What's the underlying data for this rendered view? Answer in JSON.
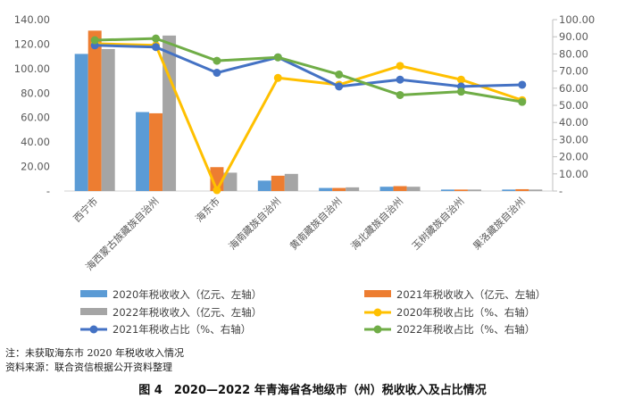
{
  "chart_data": {
    "type": "bar",
    "categories": [
      "西宁市",
      "海西蒙古族藏族自治州",
      "海东市",
      "海南藏族自治州",
      "黄南藏族自治州",
      "海北藏族自治州",
      "玉树藏族自治州",
      "果洛藏族自治州"
    ],
    "left_axis": {
      "min": 0,
      "max": 140,
      "step": 20,
      "tick_labels": [
        "-",
        "20.00",
        "40.00",
        "60.00",
        "80.00",
        "100.00",
        "120.00",
        "140.00"
      ]
    },
    "right_axis": {
      "min": 0,
      "max": 100,
      "step": 10,
      "tick_labels": [
        "-",
        "10.00",
        "20.00",
        "30.00",
        "40.00",
        "50.00",
        "60.00",
        "70.00",
        "80.00",
        "90.00",
        "100.00"
      ]
    },
    "bar_series": [
      {
        "name": "2020年税收收入（亿元、左轴）",
        "color": "#5b9bd5",
        "values": [
          112,
          64.5,
          0,
          8.5,
          2.5,
          3.5,
          1.2,
          1.2
        ]
      },
      {
        "name": "2021年税收收入（亿元、左轴）",
        "color": "#ed7d31",
        "values": [
          131,
          63.5,
          19.5,
          12.5,
          2.5,
          4.0,
          1.2,
          1.5
        ]
      },
      {
        "name": "2022年税收收入（亿元、左轴）",
        "color": "#a5a5a5",
        "values": [
          116,
          127,
          15,
          14,
          3.0,
          3.5,
          1.2,
          1.2
        ]
      }
    ],
    "line_series": [
      {
        "name": "2020年税收占比（%、右轴）",
        "color": "#ffc000",
        "values": [
          86,
          85,
          0.5,
          66,
          62,
          73,
          65,
          53
        ]
      },
      {
        "name": "2021年税收占比（%、右轴）",
        "color": "#4472c4",
        "values": [
          85,
          84,
          69,
          78,
          61,
          65,
          61,
          62
        ]
      },
      {
        "name": "2022年税收占比（%、右轴）",
        "color": "#70ad47",
        "values": [
          88,
          89,
          76,
          78,
          68,
          56,
          58,
          52
        ]
      }
    ],
    "legend_position": "bottom",
    "grid": false
  },
  "notes": [
    "注：未获取海东市 2020 年税收收入情况",
    "资料来源：联合资信根据公开资料整理"
  ],
  "caption": "图 4　2020—2022 年青海省各地级市（州）税收收入及占比情况"
}
